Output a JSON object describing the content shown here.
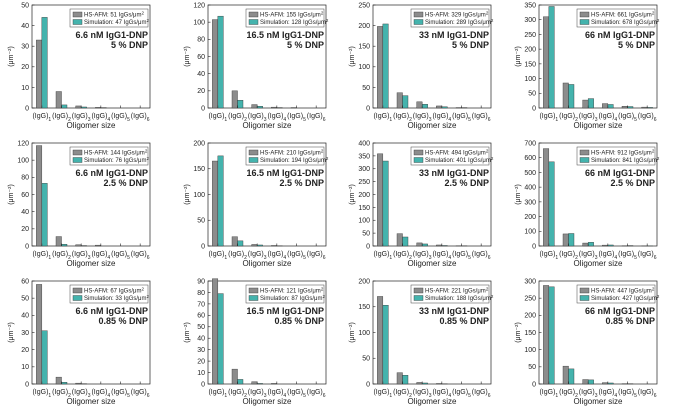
{
  "colors": {
    "afm": "#8c8c8c",
    "sim": "#44b3ad",
    "axis": "#222222"
  },
  "chart_data": [
    {
      "type": "bar",
      "categories": [
        "(IgG)1",
        "(IgG)2",
        "(IgG)3",
        "(IgG)4",
        "(IgG)5",
        "(IgG)6"
      ],
      "xlabel": "Oligomer size",
      "ylabel": "(μm⁻²)",
      "ylim": [
        0,
        50
      ],
      "yticks": [
        0,
        10,
        20,
        30,
        40,
        50
      ],
      "series": [
        {
          "name": "HS-AFM: 51 IgGs/μm²",
          "values": [
            33,
            8,
            1,
            0.3,
            0,
            0
          ]
        },
        {
          "name": "Simulation: 47 IgGs/μm²",
          "values": [
            44,
            1.5,
            0.5,
            0.2,
            0,
            0
          ]
        }
      ],
      "annotation": {
        "concentration": "6.6 nM IgG1-DNP",
        "dnp": "5 % DNP"
      },
      "legend_placement": "top-right"
    },
    {
      "type": "bar",
      "categories": [
        "(IgG)1",
        "(IgG)2",
        "(IgG)3",
        "(IgG)4",
        "(IgG)5",
        "(IgG)6"
      ],
      "xlabel": "Oligomer size",
      "ylabel": "(μm⁻²)",
      "ylim": [
        0,
        120
      ],
      "yticks": [
        0,
        20,
        40,
        60,
        80,
        100,
        120
      ],
      "series": [
        {
          "name": "HS-AFM: 155 IgGs/μm²",
          "values": [
            103,
            20,
            4,
            1,
            0.5,
            0
          ]
        },
        {
          "name": "Simulation: 128 IgGs/μm²",
          "values": [
            107,
            9,
            2,
            0.5,
            0,
            0
          ]
        }
      ],
      "annotation": {
        "concentration": "16.5 nM IgG1-DNP",
        "dnp": "5 % DNP"
      },
      "legend_placement": "top-right"
    },
    {
      "type": "bar",
      "categories": [
        "(IgG)1",
        "(IgG)2",
        "(IgG)3",
        "(IgG)4",
        "(IgG)5",
        "(IgG)6"
      ],
      "xlabel": "Oligomer size",
      "ylabel": "(μm⁻²)",
      "ylim": [
        0,
        250
      ],
      "yticks": [
        0,
        50,
        100,
        150,
        200,
        250
      ],
      "series": [
        {
          "name": "HS-AFM: 329 IgGs/μm²",
          "values": [
            198,
            37,
            15,
            5,
            1,
            0
          ]
        },
        {
          "name": "Simulation: 289 IgGs/μm²",
          "values": [
            204,
            30,
            9,
            3,
            1,
            0
          ]
        }
      ],
      "annotation": {
        "concentration": "33 nM IgG1-DNP",
        "dnp": "5 % DNP"
      },
      "legend_placement": "top-right"
    },
    {
      "type": "bar",
      "categories": [
        "(IgG)1",
        "(IgG)2",
        "(IgG)3",
        "(IgG)4",
        "(IgG)5",
        "(IgG)6"
      ],
      "xlabel": "Oligomer size",
      "ylabel": "(μm⁻²)",
      "ylim": [
        0,
        350
      ],
      "yticks": [
        0,
        50,
        100,
        150,
        200,
        250,
        300,
        350
      ],
      "series": [
        {
          "name": "HS-AFM: 661 IgGs/μm²",
          "values": [
            310,
            85,
            27,
            15,
            6,
            3
          ]
        },
        {
          "name": "Simulation: 678 IgGs/μm²",
          "values": [
            345,
            80,
            32,
            12,
            5,
            2
          ]
        }
      ],
      "annotation": {
        "concentration": "66 nM IgG1-DNP",
        "dnp": "5 % DNP"
      },
      "legend_placement": "top-right"
    },
    {
      "type": "bar",
      "categories": [
        "(IgG)1",
        "(IgG)2",
        "(IgG)3",
        "(IgG)4",
        "(IgG)5",
        "(IgG)6"
      ],
      "xlabel": "Oligomer size",
      "ylabel": "(μm⁻²)",
      "ylim": [
        0,
        120
      ],
      "yticks": [
        0,
        20,
        40,
        60,
        80,
        100,
        120
      ],
      "series": [
        {
          "name": "HS-AFM: 144 IgGs/μm²",
          "values": [
            117,
            11,
            1.5,
            1,
            0,
            0
          ]
        },
        {
          "name": "Simulation: 76 IgGs/μm²",
          "values": [
            73,
            2,
            0.5,
            0,
            0,
            0
          ]
        }
      ],
      "annotation": {
        "concentration": "6.6 nM IgG1-DNP",
        "dnp": "2.5 % DNP"
      },
      "legend_placement": "top-right"
    },
    {
      "type": "bar",
      "categories": [
        "(IgG)1",
        "(IgG)2",
        "(IgG)3",
        "(IgG)4",
        "(IgG)5",
        "(IgG)6"
      ],
      "xlabel": "Oligomer size",
      "ylabel": "(μm⁻²)",
      "ylim": [
        0,
        200
      ],
      "yticks": [
        0,
        50,
        100,
        150,
        200
      ],
      "series": [
        {
          "name": "HS-AFM: 210 IgGs/μm²",
          "values": [
            165,
            18,
            3,
            1,
            0,
            0
          ]
        },
        {
          "name": "Simulation: 194 IgGs/μm²",
          "values": [
            175,
            10,
            2,
            0.5,
            0,
            0
          ]
        }
      ],
      "annotation": {
        "concentration": "16.5 nM IgG1-DNP",
        "dnp": "2.5 % DNP"
      },
      "legend_placement": "top-right"
    },
    {
      "type": "bar",
      "categories": [
        "(IgG)1",
        "(IgG)2",
        "(IgG)3",
        "(IgG)4",
        "(IgG)5",
        "(IgG)6"
      ],
      "xlabel": "Oligomer size",
      "ylabel": "(μm⁻²)",
      "ylim": [
        0,
        400
      ],
      "yticks": [
        0,
        50,
        100,
        150,
        200,
        250,
        300,
        350,
        400
      ],
      "series": [
        {
          "name": "HS-AFM: 494 IgGs/μm²",
          "values": [
            358,
            48,
            12,
            4,
            1,
            0
          ]
        },
        {
          "name": "Simulation: 401 IgGs/μm²",
          "values": [
            330,
            35,
            8,
            2,
            1,
            0
          ]
        }
      ],
      "annotation": {
        "concentration": "33 nM IgG1-DNP",
        "dnp": "2.5 % DNP"
      },
      "legend_placement": "top-right"
    },
    {
      "type": "bar",
      "categories": [
        "(IgG)1",
        "(IgG)2",
        "(IgG)3",
        "(IgG)4",
        "(IgG)5",
        "(IgG)6"
      ],
      "xlabel": "Oligomer size",
      "ylabel": "(μm⁻²)",
      "ylim": [
        0,
        700
      ],
      "yticks": [
        0,
        100,
        200,
        300,
        400,
        500,
        600,
        700
      ],
      "series": [
        {
          "name": "HS-AFM: 912 IgGs/μm²",
          "values": [
            662,
            82,
            20,
            6,
            2,
            1
          ]
        },
        {
          "name": "Simulation: 841 IgGs/μm²",
          "values": [
            572,
            85,
            25,
            7,
            3,
            1
          ]
        }
      ],
      "annotation": {
        "concentration": "66 nM IgG1-DNP",
        "dnp": "2.5 % DNP"
      },
      "legend_placement": "top-right"
    },
    {
      "type": "bar",
      "categories": [
        "(IgG)1",
        "(IgG)2",
        "(IgG)3",
        "(IgG)4",
        "(IgG)5",
        "(IgG)6"
      ],
      "xlabel": "Oligomer size",
      "ylabel": "(μm⁻²)",
      "ylim": [
        0,
        60
      ],
      "yticks": [
        0,
        10,
        20,
        30,
        40,
        50,
        60
      ],
      "series": [
        {
          "name": "HS-AFM: 67 IgGs/μm²",
          "values": [
            58,
            4,
            0.5,
            0,
            0,
            0
          ]
        },
        {
          "name": "Simulation: 33 IgGs/μm²",
          "values": [
            31,
            1,
            0.2,
            0,
            0,
            0
          ]
        }
      ],
      "annotation": {
        "concentration": "6.6 nM IgG1-DNP",
        "dnp": "0.85 % DNP"
      },
      "legend_placement": "top-right"
    },
    {
      "type": "bar",
      "categories": [
        "(IgG)1",
        "(IgG)2",
        "(IgG)3",
        "(IgG)4",
        "(IgG)5",
        "(IgG)6"
      ],
      "xlabel": "Oligomer size",
      "ylabel": "(μm⁻²)",
      "ylim": [
        0,
        90
      ],
      "yticks": [
        0,
        10,
        20,
        30,
        40,
        50,
        60,
        70,
        80,
        90
      ],
      "series": [
        {
          "name": "HS-AFM: 121 IgGs/μm²",
          "values": [
            92,
            13,
            2,
            0.5,
            0,
            0
          ]
        },
        {
          "name": "Simulation: 87 IgGs/μm²",
          "values": [
            79,
            4,
            0.5,
            0,
            0,
            0
          ]
        }
      ],
      "annotation": {
        "concentration": "16.5 nM IgG1-DNP",
        "dnp": "0.85 % DNP"
      },
      "legend_placement": "top-right"
    },
    {
      "type": "bar",
      "categories": [
        "(IgG)1",
        "(IgG)2",
        "(IgG)3",
        "(IgG)4",
        "(IgG)5",
        "(IgG)6"
      ],
      "xlabel": "Oligomer size",
      "ylabel": "(μm⁻²)",
      "ylim": [
        0,
        200
      ],
      "yticks": [
        0,
        50,
        100,
        150,
        200
      ],
      "series": [
        {
          "name": "HS-AFM: 221 IgGs/μm²",
          "values": [
            170,
            22,
            3,
            1,
            0,
            0
          ]
        },
        {
          "name": "Simulation: 188 IgGs/μm²",
          "values": [
            153,
            17,
            2,
            0.5,
            0,
            0
          ]
        }
      ],
      "annotation": {
        "concentration": "33 nM IgG1-DNP",
        "dnp": "0.85 % DNP"
      },
      "legend_placement": "top-right"
    },
    {
      "type": "bar",
      "categories": [
        "(IgG)1",
        "(IgG)2",
        "(IgG)3",
        "(IgG)4",
        "(IgG)5",
        "(IgG)6"
      ],
      "xlabel": "Oligomer size",
      "ylabel": "(μm⁻²)",
      "ylim": [
        0,
        300
      ],
      "yticks": [
        0,
        50,
        100,
        150,
        200,
        250,
        300
      ],
      "series": [
        {
          "name": "HS-AFM: 447 IgGs/μm²",
          "values": [
            287,
            52,
            13,
            4,
            1,
            0
          ]
        },
        {
          "name": "Simulation: 427 IgGs/μm²",
          "values": [
            283,
            44,
            12,
            3,
            1,
            0
          ]
        }
      ],
      "annotation": {
        "concentration": "66 nM IgG1-DNP",
        "dnp": "0.85 % DNP"
      },
      "legend_placement": "top-right"
    }
  ]
}
